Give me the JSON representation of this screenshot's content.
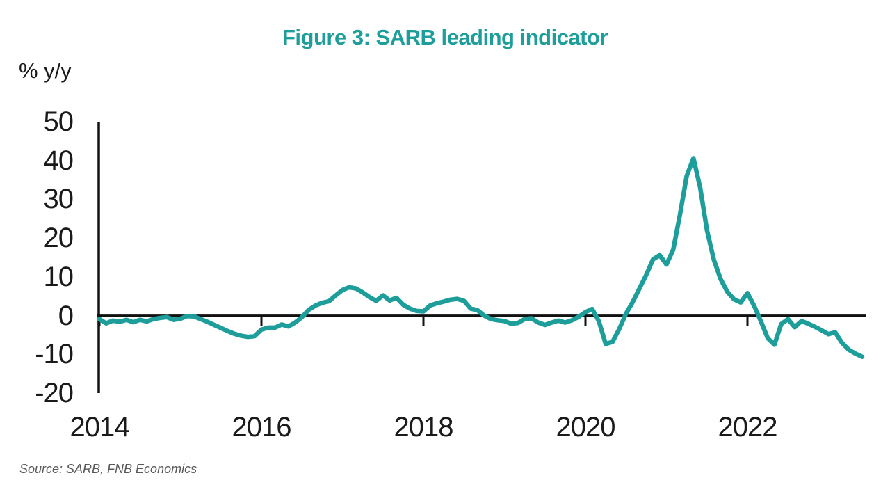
{
  "title": "Figure 3: SARB leading indicator",
  "unit_label": "% y/y",
  "source": "Source: SARB, FNB Economics",
  "colors": {
    "title": "#1d9e9a",
    "line": "#1d9e9a",
    "axis": "#111111",
    "source_text": "#595959"
  },
  "chart_data": {
    "type": "line",
    "title": "Figure 3: SARB leading indicator",
    "ylabel": "% y/y",
    "ylim": [
      -20,
      50
    ],
    "yticks": [
      50,
      40,
      30,
      20,
      10,
      0,
      -10,
      -20
    ],
    "xticks": [
      2014,
      2016,
      2018,
      2020,
      2022
    ],
    "x_start": "2014-01",
    "x_end": "2023-06",
    "frequency": "monthly",
    "grid": false,
    "legend": "none",
    "series": [
      {
        "name": "SARB leading indicator (% y/y)",
        "values": [
          -0.9,
          -2.0,
          -1.3,
          -1.6,
          -1.1,
          -1.7,
          -1.1,
          -1.5,
          -0.9,
          -0.6,
          -0.4,
          -1.1,
          -0.8,
          -0.1,
          -0.2,
          -0.9,
          -1.6,
          -2.4,
          -3.2,
          -4.0,
          -4.7,
          -5.2,
          -5.5,
          -5.3,
          -3.6,
          -3.1,
          -3.1,
          -2.3,
          -2.8,
          -1.8,
          -0.4,
          1.5,
          2.6,
          3.3,
          3.7,
          5.2,
          6.6,
          7.3,
          7.0,
          6.0,
          4.8,
          3.8,
          5.2,
          3.9,
          4.6,
          2.8,
          1.8,
          1.2,
          1.1,
          2.6,
          3.2,
          3.6,
          4.1,
          4.3,
          3.8,
          1.8,
          1.4,
          0.0,
          -0.9,
          -1.2,
          -1.4,
          -2.1,
          -1.9,
          -0.9,
          -0.7,
          -1.8,
          -2.4,
          -1.8,
          -1.3,
          -1.8,
          -1.2,
          -0.3,
          0.9,
          1.7,
          -1.5,
          -7.3,
          -6.8,
          -3.5,
          0.5,
          3.5,
          7.0,
          10.5,
          14.5,
          15.6,
          13.2,
          17.0,
          26.0,
          36.0,
          40.6,
          33.0,
          22.0,
          14.5,
          9.5,
          6.2,
          4.2,
          3.4,
          5.8,
          2.5,
          -1.5,
          -5.8,
          -7.5,
          -2.2,
          -0.9,
          -3.0,
          -1.4,
          -2.1,
          -2.9,
          -3.8,
          -4.8,
          -4.3,
          -7.0,
          -8.8,
          -9.8,
          -10.6
        ]
      }
    ],
    "source": "Source: SARB, FNB Economics"
  }
}
